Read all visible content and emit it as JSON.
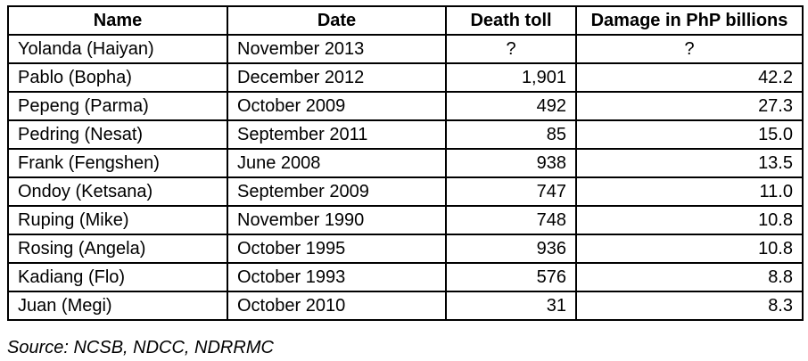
{
  "headers": {
    "name": "Name",
    "date": "Date",
    "death_toll": "Death toll",
    "damage": "Damage in PhP billions"
  },
  "rows": [
    {
      "name": "Yolanda (Haiyan)",
      "date": "November 2013",
      "death_toll": "?",
      "damage": "?"
    },
    {
      "name": "Pablo (Bopha)",
      "date": "December 2012",
      "death_toll": "1,901",
      "damage": "42.2"
    },
    {
      "name": "Pepeng (Parma)",
      "date": "October 2009",
      "death_toll": "492",
      "damage": "27.3"
    },
    {
      "name": "Pedring (Nesat)",
      "date": "September 2011",
      "death_toll": "85",
      "damage": "15.0"
    },
    {
      "name": "Frank (Fengshen)",
      "date": "June 2008",
      "death_toll": "938",
      "damage": "13.5"
    },
    {
      "name": "Ondoy (Ketsana)",
      "date": "September 2009",
      "death_toll": "747",
      "damage": "11.0"
    },
    {
      "name": "Ruping (Mike)",
      "date": "November 1990",
      "death_toll": "748",
      "damage": "10.8"
    },
    {
      "name": "Rosing (Angela)",
      "date": "October 1995",
      "death_toll": "936",
      "damage": "10.8"
    },
    {
      "name": "Kadiang (Flo)",
      "date": "October 1993",
      "death_toll": "576",
      "damage": "8.8"
    },
    {
      "name": "Juan (Megi)",
      "date": "October 2010",
      "death_toll": "31",
      "damage": "8.3"
    }
  ],
  "source": "Source: NCSB, NDCC, NDRRMC"
}
